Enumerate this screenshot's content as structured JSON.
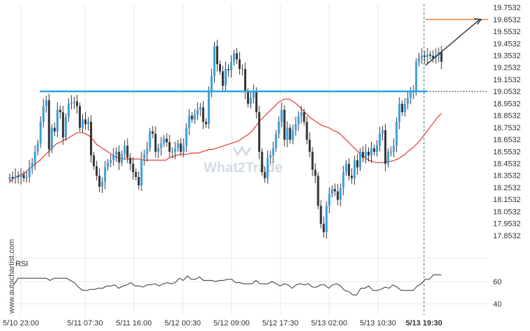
{
  "chart_data": {
    "type": "candlestick",
    "price_axis": {
      "ticks": [
        "19.7532",
        "19.6532",
        "19.5532",
        "19.4532",
        "19.3532",
        "19.2532",
        "19.1532",
        "19.0532",
        "18.9532",
        "18.8532",
        "18.7532",
        "18.6532",
        "18.5532",
        "18.4532",
        "18.3532",
        "18.2532",
        "18.1532",
        "18.0532",
        "17.9532",
        "17.8532"
      ],
      "ylim": [
        17.8,
        19.78
      ]
    },
    "time_axis": {
      "labels": [
        "5/10 23:00",
        "5/11 07:30",
        "5/11 16:00",
        "5/12 00:30",
        "5/12 09:00",
        "5/12 17:30",
        "5/13 02:00",
        "5/13 10:30",
        "5/13 19:30"
      ],
      "highlight": "5/13 19:30"
    },
    "resistance_level": 19.0532,
    "target_level": 19.6532,
    "rsi": {
      "label": "RSI",
      "ticks": [
        "60",
        "40"
      ],
      "values": [
        57,
        63,
        63,
        63,
        63,
        63,
        63,
        63,
        63,
        61,
        63,
        63,
        63,
        63,
        61,
        59,
        55,
        52,
        52,
        53,
        53,
        54,
        54,
        56,
        56,
        57,
        54,
        56,
        57,
        59,
        56,
        56,
        55,
        57,
        57,
        58,
        56,
        58,
        59,
        58,
        59,
        63,
        61,
        65,
        62,
        62,
        64,
        61,
        61,
        61,
        60,
        61,
        61,
        62,
        62,
        59,
        59,
        58,
        58,
        58,
        61,
        58,
        58,
        58,
        60,
        58,
        56,
        58,
        57,
        54,
        57,
        58,
        57,
        58,
        55,
        55,
        57,
        57,
        54,
        57,
        58,
        56,
        52,
        51,
        48,
        48,
        54,
        54,
        56,
        52,
        52,
        53,
        55,
        54,
        57,
        55,
        52,
        52,
        52,
        52,
        56,
        58,
        62,
        62,
        66,
        66,
        66
      ]
    },
    "series": [
      {
        "name": "",
        "values": [
          18.34,
          18.33,
          18.35,
          18.34,
          18.36,
          18.33,
          18.34,
          18.42,
          18.46,
          18.55,
          18.62,
          18.8,
          18.93,
          18.98,
          18.57,
          18.75,
          18.72,
          18.9,
          18.88,
          18.67,
          18.84,
          18.95,
          18.96,
          18.97,
          18.93,
          18.75,
          18.82,
          18.78,
          18.8,
          18.52,
          18.43,
          18.35,
          18.26,
          18.3,
          18.42,
          18.46,
          18.48,
          18.52,
          18.55,
          18.46,
          18.53,
          18.6,
          18.5,
          18.45,
          18.38,
          18.34,
          18.27,
          18.49,
          18.53,
          18.58,
          18.72,
          18.7,
          18.55,
          18.58,
          18.62,
          18.66,
          18.63,
          18.55,
          18.55,
          18.58,
          18.62,
          18.55,
          18.6,
          18.75,
          18.85,
          18.82,
          18.86,
          18.9,
          18.92,
          18.8,
          18.78,
          19.05,
          19.18,
          19.43,
          19.28,
          19.22,
          19.1,
          19.24,
          19.23,
          19.3,
          19.37,
          19.32,
          19.24,
          19.24,
          19.05,
          18.95,
          19.0,
          19.05,
          18.88,
          18.55,
          18.38,
          18.33,
          18.5,
          18.52,
          18.58,
          18.7,
          18.8,
          18.9,
          18.65,
          18.75,
          18.65,
          18.73,
          18.78,
          18.85,
          18.88,
          18.8,
          18.65,
          18.55,
          18.4,
          18.35,
          18.1,
          17.95,
          17.88,
          18.1,
          18.2,
          18.24,
          18.22,
          18.15,
          18.25,
          18.38,
          18.45,
          18.35,
          18.33,
          18.48,
          18.42,
          18.55,
          18.5,
          18.55,
          18.52,
          18.58,
          18.55,
          18.6,
          18.7,
          18.73,
          18.45,
          18.55,
          18.55,
          18.6,
          18.8,
          18.95,
          18.88,
          18.95,
          19.0,
          19.05,
          19.05,
          19.3,
          19.33,
          19.35,
          19.34,
          19.36,
          19.35,
          19.33,
          19.35,
          19.38,
          19.3
        ]
      },
      {
        "name": "",
        "values": [
          18.3,
          18.33,
          18.34,
          18.36,
          18.37,
          18.4,
          18.42,
          18.45,
          18.47,
          18.5,
          18.53,
          18.56,
          18.59,
          18.62,
          18.63,
          18.65,
          18.66,
          18.68,
          18.7,
          18.71,
          18.71,
          18.7,
          18.68,
          18.65,
          18.61,
          18.59,
          18.57,
          18.55,
          18.53,
          18.51,
          18.5,
          18.49,
          18.49,
          18.49,
          18.49,
          18.49,
          18.49,
          18.48,
          18.48,
          18.48,
          18.48,
          18.48,
          18.48,
          18.48,
          18.5,
          18.51,
          18.52,
          18.53,
          18.53,
          18.53,
          18.54,
          18.54,
          18.54,
          18.55,
          18.56,
          18.57,
          18.57,
          18.58,
          18.59,
          18.6,
          18.61,
          18.62,
          18.63,
          18.64,
          18.66,
          18.68,
          18.7,
          18.73,
          18.77,
          18.81,
          18.84,
          18.87,
          18.9,
          18.93,
          18.96,
          18.98,
          18.99,
          18.99,
          18.97,
          18.95,
          18.92,
          18.89,
          18.86,
          18.83,
          18.81,
          18.79,
          18.77,
          18.76,
          18.75,
          18.73,
          18.72,
          18.7,
          18.67,
          18.64,
          18.61,
          18.58,
          18.55,
          18.52,
          18.5,
          18.48,
          18.47,
          18.46,
          18.46,
          18.46,
          18.47,
          18.47,
          18.48,
          18.49,
          18.51,
          18.53,
          18.56,
          18.58,
          18.61,
          18.64,
          18.68,
          18.72,
          18.76,
          18.8,
          18.84,
          18.87
        ]
      }
    ],
    "colors": {
      "candle_body": "#3a9fe0",
      "candle_bear": "#333333",
      "moving_average": "#e53935",
      "resistance": "#29a3e8",
      "target": "#f07f3a",
      "arrow": "#2b3a4a",
      "rsi_line": "#333333",
      "grid": "#e8e8e8",
      "dashed": "#2b7a6a"
    }
  },
  "watermark": "www.autochartist.com",
  "logo": "What2Trade",
  "rsi_label": "RSI"
}
